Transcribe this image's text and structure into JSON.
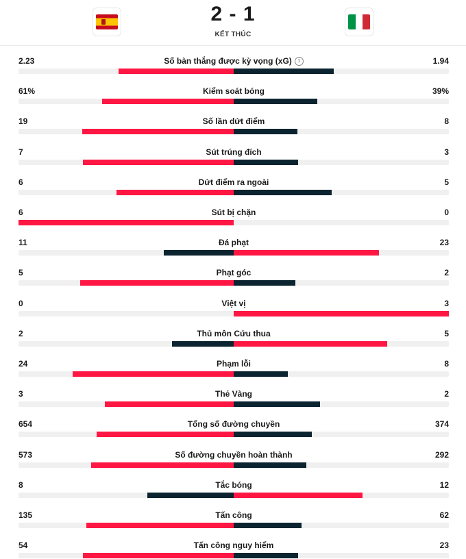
{
  "match": {
    "home_score": "2",
    "away_score": "1",
    "separator": "-",
    "status": "KẾT THÚC",
    "home_flag_icon": "spain-flag-icon",
    "away_flag_icon": "italy-flag-icon"
  },
  "colors": {
    "leader": "#ff1744",
    "trailer": "#0b2430",
    "track": "#f0f0f0"
  },
  "stats": [
    {
      "label": "Số bàn thắng được kỳ vọng (xG)",
      "home": "2.23",
      "away": "1.94",
      "info": true
    },
    {
      "label": "Kiểm soát bóng",
      "home": "61%",
      "away": "39%"
    },
    {
      "label": "Số lần dứt điểm",
      "home": "19",
      "away": "8"
    },
    {
      "label": "Sút trúng đích",
      "home": "7",
      "away": "3"
    },
    {
      "label": "Dứt điểm ra ngoài",
      "home": "6",
      "away": "5"
    },
    {
      "label": "Sút bị chặn",
      "home": "6",
      "away": "0"
    },
    {
      "label": "Đá phạt",
      "home": "11",
      "away": "23"
    },
    {
      "label": "Phạt góc",
      "home": "5",
      "away": "2"
    },
    {
      "label": "Việt vị",
      "home": "0",
      "away": "3"
    },
    {
      "label": "Thủ môn Cứu thua",
      "home": "2",
      "away": "5"
    },
    {
      "label": "Phạm lỗi",
      "home": "24",
      "away": "8"
    },
    {
      "label": "Thẻ Vàng",
      "home": "3",
      "away": "2"
    },
    {
      "label": "Tổng số đường chuyền",
      "home": "654",
      "away": "374"
    },
    {
      "label": "Số đường chuyền hoàn thành",
      "home": "573",
      "away": "292"
    },
    {
      "label": "Tắc bóng",
      "home": "8",
      "away": "12"
    },
    {
      "label": "Tấn công",
      "home": "135",
      "away": "62"
    },
    {
      "label": "Tấn công nguy hiểm",
      "home": "54",
      "away": "23"
    }
  ]
}
